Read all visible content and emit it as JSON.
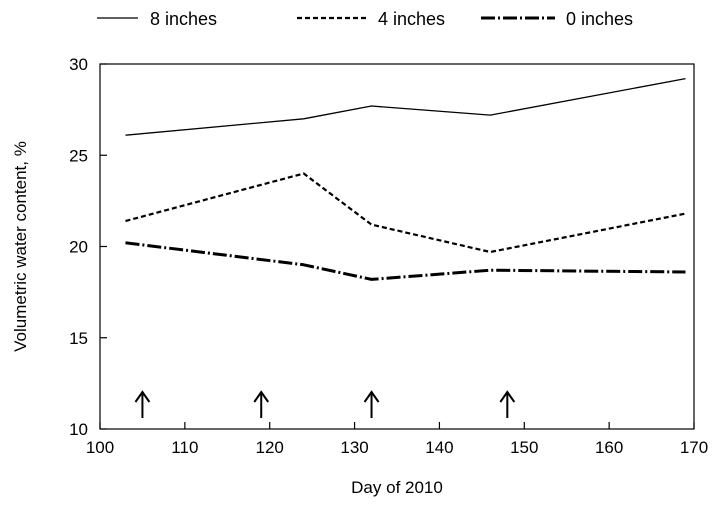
{
  "chart_data": {
    "type": "line",
    "title": "",
    "xlabel": "Day of 2010",
    "ylabel": "Volumetric water content, %",
    "xlim": [
      100,
      170
    ],
    "ylim": [
      10,
      30
    ],
    "xticks": [
      100,
      110,
      120,
      130,
      140,
      150,
      160,
      170
    ],
    "yticks": [
      10,
      15,
      20,
      25,
      30
    ],
    "grid": false,
    "legend_position": "top",
    "series": [
      {
        "name": "8 inches",
        "style": "solid",
        "x": [
          103,
          124,
          132,
          146,
          169
        ],
        "y": [
          26.1,
          27.0,
          27.7,
          27.2,
          29.2
        ]
      },
      {
        "name": "4 inches",
        "style": "dashed",
        "x": [
          103,
          124,
          132,
          146,
          169
        ],
        "y": [
          21.4,
          24.0,
          21.2,
          19.7,
          21.8
        ]
      },
      {
        "name": "0 inches",
        "style": "dashdot",
        "x": [
          103,
          124,
          132,
          146,
          169
        ],
        "y": [
          20.2,
          19.0,
          18.2,
          18.7,
          18.6
        ]
      }
    ],
    "annotations": [
      {
        "type": "arrow",
        "direction": "up",
        "x": 105
      },
      {
        "type": "arrow",
        "direction": "up",
        "x": 119
      },
      {
        "type": "arrow",
        "direction": "up",
        "x": 132
      },
      {
        "type": "arrow",
        "direction": "up",
        "x": 148
      }
    ]
  }
}
